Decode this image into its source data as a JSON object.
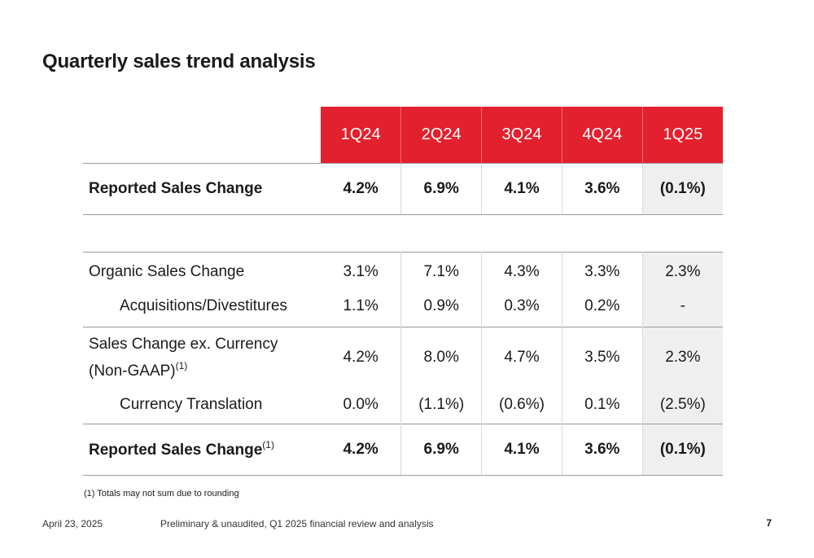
{
  "title": "Quarterly sales trend analysis",
  "table": {
    "columns": [
      "1Q24",
      "2Q24",
      "3Q24",
      "4Q24",
      "1Q25"
    ],
    "reported_top": {
      "label": "Reported Sales Change",
      "values": [
        "4.2%",
        "6.9%",
        "4.1%",
        "3.6%",
        "(0.1%)"
      ]
    },
    "organic": {
      "label": "Organic Sales Change",
      "values": [
        "3.1%",
        "7.1%",
        "4.3%",
        "3.3%",
        "2.3%"
      ]
    },
    "acquisitions": {
      "label": "Acquisitions/Divestitures",
      "values": [
        "1.1%",
        "0.9%",
        "0.3%",
        "0.2%",
        "-"
      ]
    },
    "sales_ex_currency": {
      "label_line1": "Sales Change ex. Currency",
      "label_line2": "(Non-GAAP)",
      "footnote_ref": "(1)",
      "values": [
        "4.2%",
        "8.0%",
        "4.7%",
        "3.5%",
        "2.3%"
      ]
    },
    "currency": {
      "label": "Currency Translation",
      "values": [
        "0.0%",
        "(1.1%)",
        "(0.6%)",
        "0.1%",
        "(2.5%)"
      ]
    },
    "reported_bottom": {
      "label": "Reported Sales Change",
      "footnote_ref": "(1)",
      "values": [
        "4.2%",
        "6.9%",
        "4.1%",
        "3.6%",
        "(0.1%)"
      ]
    }
  },
  "footnote": "(1) Totals may not sum due to rounding",
  "footer": {
    "date": "April 23, 2025",
    "text": "Preliminary & unaudited, Q1 2025 financial review and analysis",
    "page": "7"
  },
  "colors": {
    "accent": "#e3202d",
    "highlight_column": "#efefef"
  }
}
